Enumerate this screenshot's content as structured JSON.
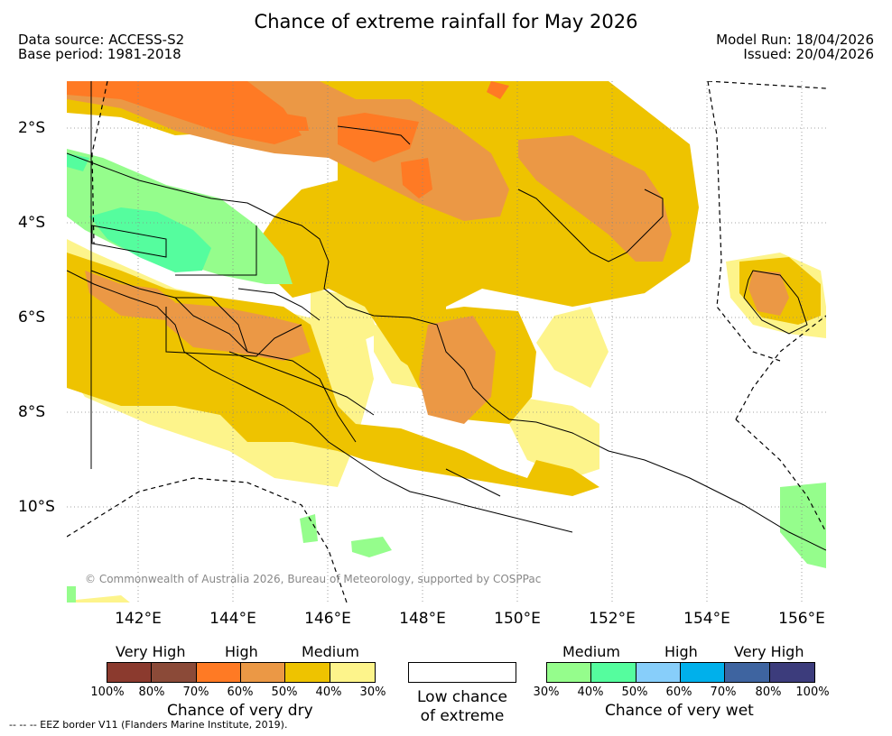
{
  "title": "Chance of extreme rainfall for May 2026",
  "meta": {
    "data_source": "Data source: ACCESS-S2",
    "base_period": "Base period: 1981-2018",
    "model_run": "Model Run: 18/04/2026",
    "issued": "Issued: 20/04/2026"
  },
  "map": {
    "copyright": "© Commonwealth of Australia 2026, Bureau of Meteorology, supported by COSPPac",
    "y_ticks": [
      "2°S",
      "4°S",
      "6°S",
      "8°S",
      "10°S"
    ],
    "x_ticks": [
      "142°E",
      "144°E",
      "146°E",
      "148°E",
      "150°E",
      "152°E",
      "154°E",
      "156°E"
    ]
  },
  "legend": {
    "dry": {
      "headers": [
        "Very High",
        "High",
        "Medium"
      ],
      "colors": [
        "#8b3a2e",
        "#8b4a38",
        "#ff7a24",
        "#eb9845",
        "#eec300",
        "#fdf48b"
      ],
      "percents": [
        "100%",
        "80%",
        "70%",
        "60%",
        "50%",
        "40%",
        "30%"
      ],
      "caption": "Chance of very dry"
    },
    "low": {
      "caption_line1": "Low chance",
      "caption_line2": "of extreme"
    },
    "wet": {
      "headers": [
        "Medium",
        "High",
        "Very High"
      ],
      "colors": [
        "#95fd8c",
        "#55fd9e",
        "#87cefa",
        "#00b0eb",
        "#3e64a0",
        "#3c3c7c"
      ],
      "percents": [
        "30%",
        "40%",
        "50%",
        "60%",
        "70%",
        "80%",
        "100%"
      ],
      "caption": "Chance of very wet"
    }
  },
  "footnote": "--  --  -- EEZ border V11 (Flanders Marine Institute, 2019)."
}
